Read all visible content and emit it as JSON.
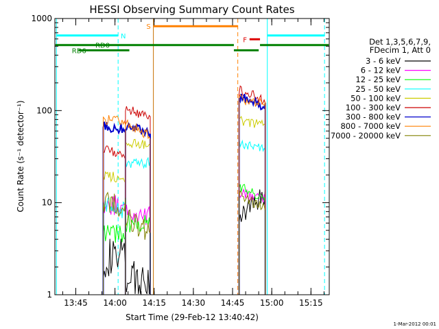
{
  "footer_date": "1-Mar-2012 00:01",
  "chart_data": {
    "type": "line",
    "title": "HESSI Observing Summary Count Rates",
    "xlabel": "Start Time (29-Feb-12 13:40:42)",
    "ylabel": "Count Rate (s⁻¹ detector⁻¹)",
    "x_unit": "minutes of day",
    "xlim": [
      817,
      922
    ],
    "ylim": [
      1,
      1000
    ],
    "y_scale": "log",
    "x_ticks": [
      {
        "t": 825,
        "label": "13:45"
      },
      {
        "t": 840,
        "label": "14:00"
      },
      {
        "t": 855,
        "label": "14:15"
      },
      {
        "t": 870,
        "label": "14:30"
      },
      {
        "t": 885,
        "label": "14:45"
      },
      {
        "t": 900,
        "label": "15:00"
      },
      {
        "t": 915,
        "label": "15:15"
      }
    ],
    "y_ticks": [
      {
        "v": 1,
        "label": "1"
      },
      {
        "v": 10,
        "label": "10"
      },
      {
        "v": 100,
        "label": "100"
      },
      {
        "v": 1000,
        "label": "1000"
      }
    ],
    "legend_header": [
      "Det 1,3,5,6,7,9,",
      "FDecim 1, Att 0"
    ],
    "legend_position": "right",
    "series": [
      {
        "name": "3 - 6 keV",
        "color": "#000000",
        "seg1": [
          2.5,
          2.5
        ],
        "seg2": [
          1.4,
          1.4
        ],
        "seg3": [
          7,
          12
        ]
      },
      {
        "name": "6 - 12 keV",
        "color": "#ff00ff",
        "seg1": [
          10,
          9
        ],
        "seg2": [
          8,
          7
        ],
        "seg3": [
          13,
          11
        ]
      },
      {
        "name": "12 - 25 keV",
        "color": "#00ff00",
        "seg1": [
          4.5,
          4.5
        ],
        "seg2": [
          6,
          6
        ],
        "seg3": [
          15,
          11
        ]
      },
      {
        "name": "25 - 50 keV",
        "color": "#00ffff",
        "seg1": [
          9,
          8
        ],
        "seg2": [
          27,
          27
        ],
        "seg3": [
          45,
          38
        ]
      },
      {
        "name": "50 - 100 keV",
        "color": "#cccc00",
        "seg1": [
          20,
          18
        ],
        "seg2": [
          46,
          42
        ],
        "seg3": [
          78,
          68
        ]
      },
      {
        "name": "100 - 300 keV",
        "color": "#cc0000",
        "seg1": [
          38,
          33
        ],
        "seg2": [
          102,
          88
        ],
        "seg3": [
          170,
          128
        ]
      },
      {
        "name": "300 - 800 keV",
        "color": "#0000cc",
        "seg1": [
          68,
          63
        ],
        "seg2": [
          68,
          58
        ],
        "seg3": [
          145,
          108
        ]
      },
      {
        "name": "800 - 7000 keV",
        "color": "#ff8000",
        "seg1": [
          80,
          76
        ],
        "seg2": [
          75,
          53
        ],
        "seg3": [
          135,
          118
        ]
      },
      {
        "name": "7000 - 20000 keV",
        "color": "#808000",
        "seg1": [
          10,
          9
        ],
        "seg2": [
          7,
          4.5
        ],
        "seg3": [
          12,
          8.5
        ]
      }
    ],
    "segments": [
      {
        "t0": 835.5,
        "t1": 844.0
      },
      {
        "t0": 844.0,
        "t1": 853.5
      },
      {
        "t0": 887.5,
        "t1": 897.5
      }
    ],
    "vertical_lines": [
      {
        "t": 817.6,
        "color": "#00ffff",
        "dash": false
      },
      {
        "t": 841.2,
        "color": "#00ffff",
        "dash": true
      },
      {
        "t": 854.7,
        "color": "#c87000",
        "dash": false
      },
      {
        "t": 887.0,
        "color": "#ff8000",
        "dash": true
      },
      {
        "t": 898.3,
        "color": "#00ffff",
        "dash": false
      },
      {
        "t": 920.2,
        "color": "#00ffff",
        "dash": true
      }
    ],
    "flag_bars": [
      {
        "label": "N",
        "color": "#00ffff",
        "y": 654,
        "ranges": [
          [
            817.6,
            841.2
          ],
          [
            898.3,
            920.2
          ]
        ],
        "label_t": 842.2
      },
      {
        "label": "S",
        "color": "#ff8000",
        "y": 825,
        "ranges": [
          [
            854.7,
            887.0
          ]
        ],
        "label_t": 852.0
      },
      {
        "label": "RD0",
        "color": "#008000",
        "y": 515,
        "ranges": [
          [
            817.2,
            885.5
          ],
          [
            895.5,
            921.8
          ]
        ],
        "label_t": 832.5
      },
      {
        "label": "RD6",
        "color": "#008000",
        "y": 452,
        "ranges": [
          [
            826.0,
            845.5
          ],
          [
            885.5,
            895.0
          ]
        ],
        "label_t": 823.5
      },
      {
        "label": "F",
        "color": "#dd0000",
        "y": 595,
        "ranges": [
          [
            891.5,
            895.5
          ]
        ],
        "label_t": 889.0
      }
    ]
  }
}
